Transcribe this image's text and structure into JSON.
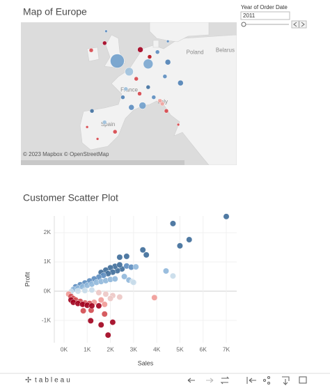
{
  "filter": {
    "label": "Year of Order Date",
    "value": "2011"
  },
  "toolbar": {
    "logo": "tableau"
  },
  "chart_data": [
    {
      "type": "map",
      "title": "Map of Europe",
      "attribution": "© 2023 Mapbox © OpenStreetMap",
      "xlim": [
        -26,
        32
      ],
      "ylim": [
        34,
        58
      ],
      "place_labels": [
        {
          "text": "Poland",
          "lon": 20.8,
          "lat": 52.9
        },
        {
          "text": "Belarus",
          "lon": 28.9,
          "lat": 53.3
        },
        {
          "text": "France",
          "lon": 3.1,
          "lat": 46.6
        },
        {
          "text": "Spain",
          "lon": -2.6,
          "lat": 40.8
        },
        {
          "text": "Italy",
          "lon": 12.1,
          "lat": 44.6
        }
      ],
      "lon": [
        -0.1,
        8.2,
        3.1,
        6.7,
        16.9,
        -3.5,
        -7.1,
        6.1,
        8.6,
        10.7,
        13.5,
        12.7,
        2.2,
        1.4,
        5.0,
        9.7,
        12.0,
        13.1,
        11.4,
        16.3,
        -6.9,
        -3.5,
        -8.2,
        -0.7,
        -5.4,
        13.5,
        -3.1,
        8.2,
        5.9,
        3.7
      ],
      "lat": [
        51.5,
        51.0,
        49.7,
        44.0,
        47.8,
        54.5,
        53.3,
        53.4,
        52.2,
        53.0,
        51.3,
        48.9,
        46.8,
        45.4,
        48.5,
        45.4,
        44.3,
        43.1,
        44.8,
        40.8,
        43.1,
        41.2,
        40.4,
        39.6,
        38.4,
        54.8,
        56.5,
        47.1,
        46.0,
        43.7
      ],
      "sizes": [
        10,
        7,
        6,
        5,
        4,
        3,
        3,
        4,
        3,
        3,
        4,
        3,
        3,
        3,
        3,
        3,
        3,
        3,
        3,
        2,
        3,
        3,
        2,
        3,
        2,
        2,
        2,
        3,
        3,
        4
      ],
      "colors": [
        "#6f9fcb",
        "#7aa6cf",
        "#9fc1dd",
        "#6f9fcb",
        "#4f81b5",
        "#a3001f",
        "#d6454a",
        "#a3001f",
        "#b5121b",
        "#5b8cbf",
        "#4f81b5",
        "#5b8cbf",
        "#9fc1dd",
        "#4f81b5",
        "#d6454a",
        "#5b8cbf",
        "#f2a39f",
        "#d6454a",
        "#f2a39f",
        "#d6454a",
        "#3f6f9e",
        "#9fc1dd",
        "#d6454a",
        "#d6454a",
        "#d6454a",
        "#5b8cbf",
        "#5b8cbf",
        "#3f6f9e",
        "#d6454a",
        "#5b8cbf"
      ]
    },
    {
      "type": "scatter",
      "title": "Customer Scatter Plot",
      "x_label": "Sales",
      "y_label": "Profit",
      "xlim": [
        -420,
        7450
      ],
      "ylim": [
        -1760,
        2570
      ],
      "grid": true,
      "xticks": [
        {
          "value": 0,
          "label": "0K"
        },
        {
          "value": 1000,
          "label": "1K"
        },
        {
          "value": 2000,
          "label": "2K"
        },
        {
          "value": 3000,
          "label": "3K"
        },
        {
          "value": 4000,
          "label": "4K"
        },
        {
          "value": 5000,
          "label": "5K"
        },
        {
          "value": 6000,
          "label": "6K"
        },
        {
          "value": 7000,
          "label": "7K"
        }
      ],
      "yticks": [
        {
          "value": -1000,
          "label": "-1K"
        },
        {
          "value": 0,
          "label": "0K"
        },
        {
          "value": 1000,
          "label": "1K"
        },
        {
          "value": 2000,
          "label": "2K"
        }
      ],
      "x": [
        7000,
        4700,
        5000,
        5400,
        3400,
        3550,
        2700,
        2400,
        2500,
        2300,
        2200,
        2400,
        2000,
        1800,
        1600,
        2100,
        1900,
        1700,
        1500,
        1300,
        1100,
        900,
        700,
        500,
        2700,
        2900,
        4400,
        3100,
        400,
        600,
        800,
        1000,
        1200,
        1400,
        1600,
        1800,
        2000,
        2200,
        2600,
        2800,
        4700,
        2950,
        3000,
        300,
        600,
        900,
        1200,
        1500,
        1800,
        2100,
        2400,
        2000,
        3900,
        1600,
        1300,
        1750,
        200,
        300,
        400,
        500,
        700,
        900,
        1100,
        880,
        1170,
        830,
        1750,
        300,
        400,
        600,
        800,
        1000,
        1200,
        1500,
        2100,
        1150,
        1600,
        1900
      ],
      "values": [
        2550,
        2310,
        1550,
        1760,
        1410,
        1240,
        1190,
        1160,
        760,
        700,
        850,
        900,
        800,
        720,
        640,
        650,
        600,
        540,
        480,
        420,
        350,
        280,
        220,
        150,
        860,
        820,
        690,
        830,
        60,
        100,
        150,
        200,
        240,
        300,
        330,
        360,
        400,
        420,
        500,
        380,
        520,
        330,
        300,
        -20,
        0,
        20,
        40,
        -50,
        -100,
        -150,
        -200,
        -250,
        -220,
        -300,
        -380,
        -450,
        -100,
        -180,
        -250,
        -300,
        -350,
        -400,
        -420,
        -430,
        -650,
        -670,
        -780,
        -300,
        -380,
        -420,
        -450,
        -480,
        -500,
        -500,
        -1060,
        -1010,
        -1150,
        -1500
      ],
      "colors": [
        "#3d6b99",
        "#3d6b99",
        "#3d6b99",
        "#3d6b99",
        "#3d6b99",
        "#3d6b99",
        "#3d6b99",
        "#3d6b99",
        "#3d6b99",
        "#3d6b99",
        "#3d6b99",
        "#3d6b99",
        "#3d6b99",
        "#3d6b99",
        "#3d6b99",
        "#3d6b99",
        "#3d6b99",
        "#5b8cbf",
        "#5b8cbf",
        "#5b8cbf",
        "#5b8cbf",
        "#5b8cbf",
        "#5b8cbf",
        "#5b8cbf",
        "#5b8cbf",
        "#5b8cbf",
        "#8fb7da",
        "#8fb7da",
        "#8fb7da",
        "#8fb7da",
        "#8fb7da",
        "#8fb7da",
        "#8fb7da",
        "#8fb7da",
        "#8fb7da",
        "#8fb7da",
        "#8fb7da",
        "#8fb7da",
        "#8fb7da",
        "#8fb7da",
        "#c8dbea",
        "#c8dbea",
        "#c8dbea",
        "#c8dbea",
        "#c8dbea",
        "#c8dbea",
        "#c8dbea",
        "#ecc6c4",
        "#ecc6c4",
        "#ecc6c4",
        "#ecc6c4",
        "#ecc6c4",
        "#ef9a96",
        "#ef9a96",
        "#ef9a96",
        "#ef9a96",
        "#ef9a96",
        "#d24a4f",
        "#d24a4f",
        "#d24a4f",
        "#d24a4f",
        "#d24a4f",
        "#d24a4f",
        "#d24a4f",
        "#d24a4f",
        "#d24a4f",
        "#d24a4f",
        "#a0001c",
        "#a0001c",
        "#a0001c",
        "#a0001c",
        "#a0001c",
        "#a0001c",
        "#a0001c",
        "#a0001c",
        "#a0001c",
        "#a0001c",
        "#a0001c"
      ]
    }
  ]
}
